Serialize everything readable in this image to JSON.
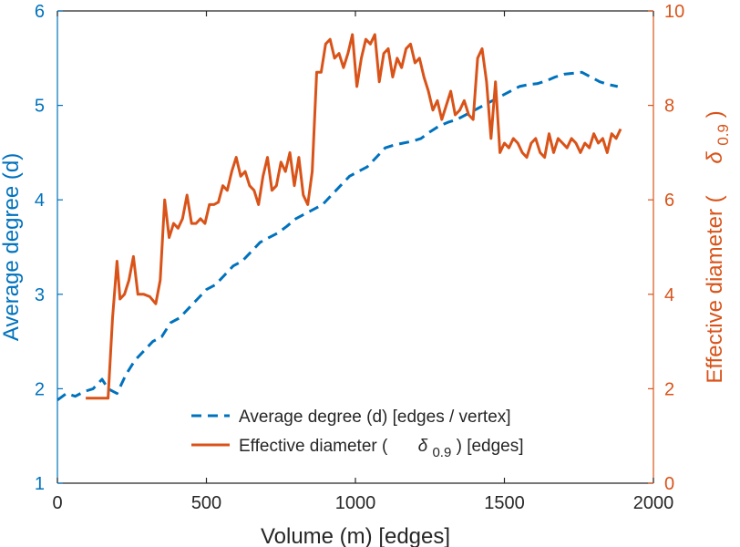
{
  "chart_data": {
    "type": "line",
    "title": "",
    "xlabel": "Volume (m) [edges]",
    "ylabel_left": "Average degree (d)",
    "ylabel_right_prefix": "Effective diameter (",
    "ylabel_right_symbol": "δ",
    "ylabel_right_subscript": "0.9",
    "ylabel_right_suffix": ")",
    "xlim": [
      0,
      2000
    ],
    "ylim_left": [
      1,
      6
    ],
    "ylim_right": [
      0,
      10
    ],
    "xticks": [
      "0",
      "500",
      "1000",
      "1500",
      "2000"
    ],
    "yticks_left": [
      "1",
      "2",
      "3",
      "4",
      "5",
      "6"
    ],
    "yticks_right": [
      "0",
      "2",
      "4",
      "6",
      "8",
      "10"
    ],
    "colors": {
      "left": "#0072BD",
      "right": "#D95319",
      "axis_text": "#262626"
    },
    "legend": {
      "location": "bottom-right",
      "entries": [
        {
          "label": "Average degree (d) [edges / vertex]",
          "style": "dashed"
        },
        {
          "label_prefix": "Effective diameter (",
          "symbol": "δ",
          "subscript": "0.9",
          "label_suffix": ") [edges]",
          "style": "solid"
        }
      ]
    },
    "series": [
      {
        "name": "Average degree (d) [edges / vertex]",
        "axis": "left",
        "style": "dashed",
        "color": "#0072BD",
        "x": [
          0,
          30,
          60,
          90,
          120,
          150,
          170,
          200,
          230,
          260,
          290,
          320,
          350,
          380,
          410,
          440,
          470,
          500,
          530,
          560,
          590,
          620,
          650,
          680,
          710,
          740,
          770,
          800,
          830,
          860,
          890,
          920,
          950,
          980,
          1010,
          1040,
          1070,
          1100,
          1130,
          1160,
          1190,
          1220,
          1250,
          1280,
          1310,
          1340,
          1370,
          1400,
          1430,
          1460,
          1490,
          1520,
          1550,
          1580,
          1610,
          1640,
          1670,
          1700,
          1730,
          1760,
          1790,
          1820,
          1850,
          1880
        ],
        "y": [
          1.88,
          1.95,
          1.92,
          1.97,
          2.0,
          2.1,
          2.0,
          1.95,
          2.15,
          2.3,
          2.4,
          2.5,
          2.55,
          2.7,
          2.75,
          2.85,
          2.95,
          3.05,
          3.1,
          3.2,
          3.3,
          3.35,
          3.45,
          3.55,
          3.6,
          3.65,
          3.72,
          3.8,
          3.85,
          3.9,
          3.95,
          4.05,
          4.15,
          4.25,
          4.3,
          4.35,
          4.45,
          4.55,
          4.58,
          4.6,
          4.62,
          4.65,
          4.72,
          4.78,
          4.82,
          4.85,
          4.9,
          4.95,
          5.0,
          5.05,
          5.1,
          5.15,
          5.2,
          5.22,
          5.23,
          5.26,
          5.3,
          5.33,
          5.34,
          5.35,
          5.3,
          5.25,
          5.22,
          5.2
        ]
      },
      {
        "name": "Effective diameter (δ0.9) [edges]",
        "axis": "right",
        "style": "solid",
        "color": "#D95319",
        "x": [
          95,
          110,
          130,
          150,
          170,
          185,
          200,
          210,
          225,
          240,
          255,
          270,
          290,
          310,
          330,
          345,
          360,
          375,
          390,
          405,
          420,
          435,
          450,
          465,
          480,
          495,
          510,
          525,
          540,
          555,
          570,
          585,
          600,
          615,
          630,
          645,
          660,
          675,
          690,
          705,
          720,
          735,
          750,
          765,
          780,
          795,
          810,
          825,
          840,
          855,
          870,
          885,
          900,
          915,
          930,
          945,
          960,
          975,
          990,
          1005,
          1020,
          1035,
          1050,
          1065,
          1080,
          1095,
          1110,
          1125,
          1140,
          1155,
          1170,
          1185,
          1200,
          1215,
          1230,
          1245,
          1260,
          1275,
          1290,
          1305,
          1320,
          1335,
          1350,
          1365,
          1380,
          1395,
          1410,
          1425,
          1440,
          1455,
          1470,
          1485,
          1500,
          1515,
          1530,
          1545,
          1560,
          1575,
          1590,
          1605,
          1620,
          1635,
          1650,
          1665,
          1680,
          1695,
          1710,
          1725,
          1740,
          1755,
          1770,
          1785,
          1800,
          1815,
          1830,
          1845,
          1860,
          1875,
          1890
        ],
        "y": [
          1.8,
          1.8,
          1.8,
          1.8,
          1.8,
          3.5,
          4.7,
          3.9,
          4.0,
          4.3,
          4.8,
          4.0,
          4.0,
          3.95,
          3.8,
          4.3,
          6.0,
          5.2,
          5.5,
          5.4,
          5.6,
          6.1,
          5.5,
          5.5,
          5.6,
          5.5,
          5.9,
          5.9,
          5.95,
          6.3,
          6.2,
          6.6,
          6.9,
          6.5,
          6.6,
          6.3,
          6.2,
          5.9,
          6.5,
          6.9,
          6.2,
          6.3,
          6.8,
          6.6,
          7.0,
          6.3,
          6.9,
          6.1,
          5.9,
          6.6,
          8.7,
          8.7,
          9.3,
          9.4,
          9.0,
          9.1,
          8.8,
          9.1,
          9.5,
          8.4,
          9.0,
          9.4,
          9.3,
          9.5,
          8.5,
          9.1,
          9.2,
          8.6,
          9.0,
          8.8,
          9.2,
          9.3,
          8.9,
          9.0,
          8.6,
          8.3,
          7.9,
          8.1,
          7.7,
          8.0,
          8.3,
          7.8,
          7.9,
          8.1,
          7.8,
          7.7,
          9.0,
          9.2,
          8.5,
          7.3,
          8.5,
          7.0,
          7.2,
          7.1,
          7.3,
          7.2,
          7.0,
          6.9,
          7.2,
          7.3,
          7.0,
          6.9,
          7.4,
          7.0,
          7.3,
          7.2,
          7.1,
          7.3,
          7.2,
          7.0,
          7.2,
          7.1,
          7.4,
          7.2,
          7.3,
          7.0,
          7.4,
          7.3,
          7.5
        ]
      }
    ]
  }
}
